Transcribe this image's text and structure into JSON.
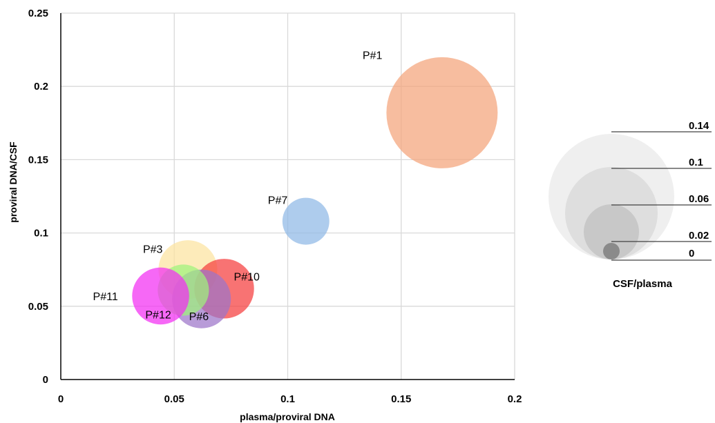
{
  "chart_data": {
    "type": "scatter",
    "subtype": "bubble",
    "title": "",
    "xlabel": "plasma/proviral DNA",
    "ylabel": "proviral DNA/CSF",
    "xlim": [
      0,
      0.2
    ],
    "ylim": [
      0,
      0.25
    ],
    "x_ticks": [
      "0",
      "0.05",
      "0.1",
      "0.15",
      "0.2"
    ],
    "y_ticks": [
      "0",
      "0.05",
      "0.1",
      "0.15",
      "0.2",
      "0.25"
    ],
    "grid": true,
    "points": [
      {
        "label": "P#1",
        "x": 0.168,
        "y": 0.182,
        "size": 0.118,
        "color": "#f4a47a"
      },
      {
        "label": "P#7",
        "x": 0.108,
        "y": 0.108,
        "size": 0.021,
        "color": "#8fb8e6"
      },
      {
        "label": "P#3",
        "x": 0.056,
        "y": 0.075,
        "size": 0.033,
        "color": "#fce3a0"
      },
      {
        "label": "P#10",
        "x": 0.072,
        "y": 0.062,
        "size": 0.034,
        "color": "#f53d3d"
      },
      {
        "label": "P#6",
        "x": 0.062,
        "y": 0.055,
        "size": 0.033,
        "color": "#9d74c9"
      },
      {
        "label": "P#12",
        "x": 0.054,
        "y": 0.061,
        "size": 0.025,
        "color": "#9ef27c"
      },
      {
        "label": "P#11",
        "x": 0.044,
        "y": 0.057,
        "size": 0.031,
        "color": "#f22ef2"
      }
    ],
    "size_legend": {
      "title": "CSF/plasma",
      "values": [
        "0.14",
        "0.1",
        "0.06",
        "0.02",
        "0"
      ]
    }
  }
}
